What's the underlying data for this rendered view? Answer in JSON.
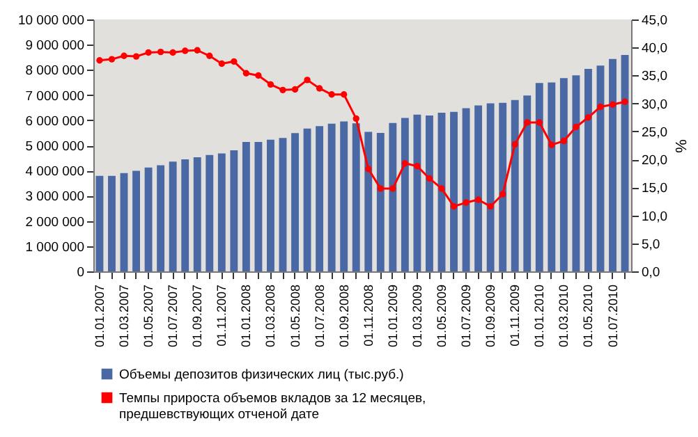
{
  "chart_data": {
    "type": "bar",
    "categories": [
      "01.01.2007",
      null,
      "01.03.2007",
      null,
      "01.05.2007",
      null,
      "01.07.2007",
      null,
      "01.09.2007",
      null,
      "01.11.2007",
      null,
      "01.01.2008",
      null,
      "01.03.2008",
      null,
      "01.05.2008",
      null,
      "01.07.2008",
      null,
      "01.09.2008",
      null,
      "01.11.2008",
      null,
      "01.01.2009",
      null,
      "01.03.2009",
      null,
      "01.05.2009",
      null,
      "01.07.2009",
      null,
      "01.09.2009",
      null,
      "01.11.2009",
      null,
      "01.01.2010",
      null,
      "01.03.2010",
      null,
      "01.05.2010",
      null,
      "01.07.2010",
      null
    ],
    "series": [
      {
        "name": "Объемы депозитов физических лиц (тыс.руб.)",
        "color": "#4a68a4",
        "values": [
          3790000,
          3790000,
          3900000,
          3990000,
          4120000,
          4210000,
          4360000,
          4450000,
          4530000,
          4620000,
          4680000,
          4810000,
          5140000,
          5140000,
          5230000,
          5300000,
          5490000,
          5670000,
          5770000,
          5860000,
          5950000,
          5880000,
          5540000,
          5500000,
          5890000,
          6090000,
          6220000,
          6190000,
          6300000,
          6330000,
          6480000,
          6590000,
          6670000,
          6690000,
          6800000,
          6980000,
          7480000,
          7500000,
          7670000,
          7780000,
          8040000,
          8170000,
          8430000,
          8590000
        ]
      },
      {
        "name": "Темпы прироста объемов вкладов за 12 месяцев, предшевствующих отченой дате",
        "type": "line",
        "axis": "y2",
        "color": "#ff0000",
        "values": [
          37.7,
          37.9,
          38.5,
          38.4,
          39.1,
          39.2,
          39.1,
          39.4,
          39.5,
          38.5,
          37.1,
          37.5,
          35.4,
          35.0,
          33.4,
          32.4,
          32.5,
          34.2,
          32.7,
          31.6,
          31.6,
          27.3,
          18.3,
          14.8,
          14.8,
          19.3,
          18.8,
          16.6,
          14.8,
          11.6,
          12.3,
          12.8,
          11.6,
          13.8,
          22.7,
          26.6,
          26.6,
          22.6,
          23.3,
          25.8,
          27.5,
          29.4,
          29.8,
          30.3
        ]
      }
    ],
    "ylim": [
      0,
      10000000
    ],
    "yticks": [
      0,
      {
        "value": 1000000,
        "label": "1 000 000"
      },
      {
        "value": 2000000,
        "label": "2 000 000"
      },
      {
        "value": 3000000,
        "label": "3 000 000"
      },
      {
        "value": 4000000,
        "label": "4 000 000"
      },
      {
        "value": 5000000,
        "label": "5 000 000"
      },
      {
        "value": 6000000,
        "label": "6 000 000"
      },
      {
        "value": 7000000,
        "label": "7 000 000"
      },
      {
        "value": 8000000,
        "label": "8 000 000"
      },
      {
        "value": 9000000,
        "label": "9 000 000"
      },
      {
        "value": 10000000,
        "label": "10 000 000"
      }
    ],
    "y2label": "%",
    "y2lim": [
      0,
      45
    ],
    "y2ticks": [
      {
        "value": 0,
        "label": "0,0"
      },
      {
        "value": 5,
        "label": "5,0"
      },
      {
        "value": 10,
        "label": "10,0"
      },
      {
        "value": 15,
        "label": "15,0"
      },
      {
        "value": 20,
        "label": "20,0"
      },
      {
        "value": 25,
        "label": "25,0"
      },
      {
        "value": 30,
        "label": "30,0"
      },
      {
        "value": 35,
        "label": "35,0"
      },
      {
        "value": 40,
        "label": "40,0"
      },
      {
        "value": 45,
        "label": "45,0"
      }
    ],
    "grid": false,
    "legend": "bottom",
    "marker": "circle",
    "line_style": "solid"
  }
}
